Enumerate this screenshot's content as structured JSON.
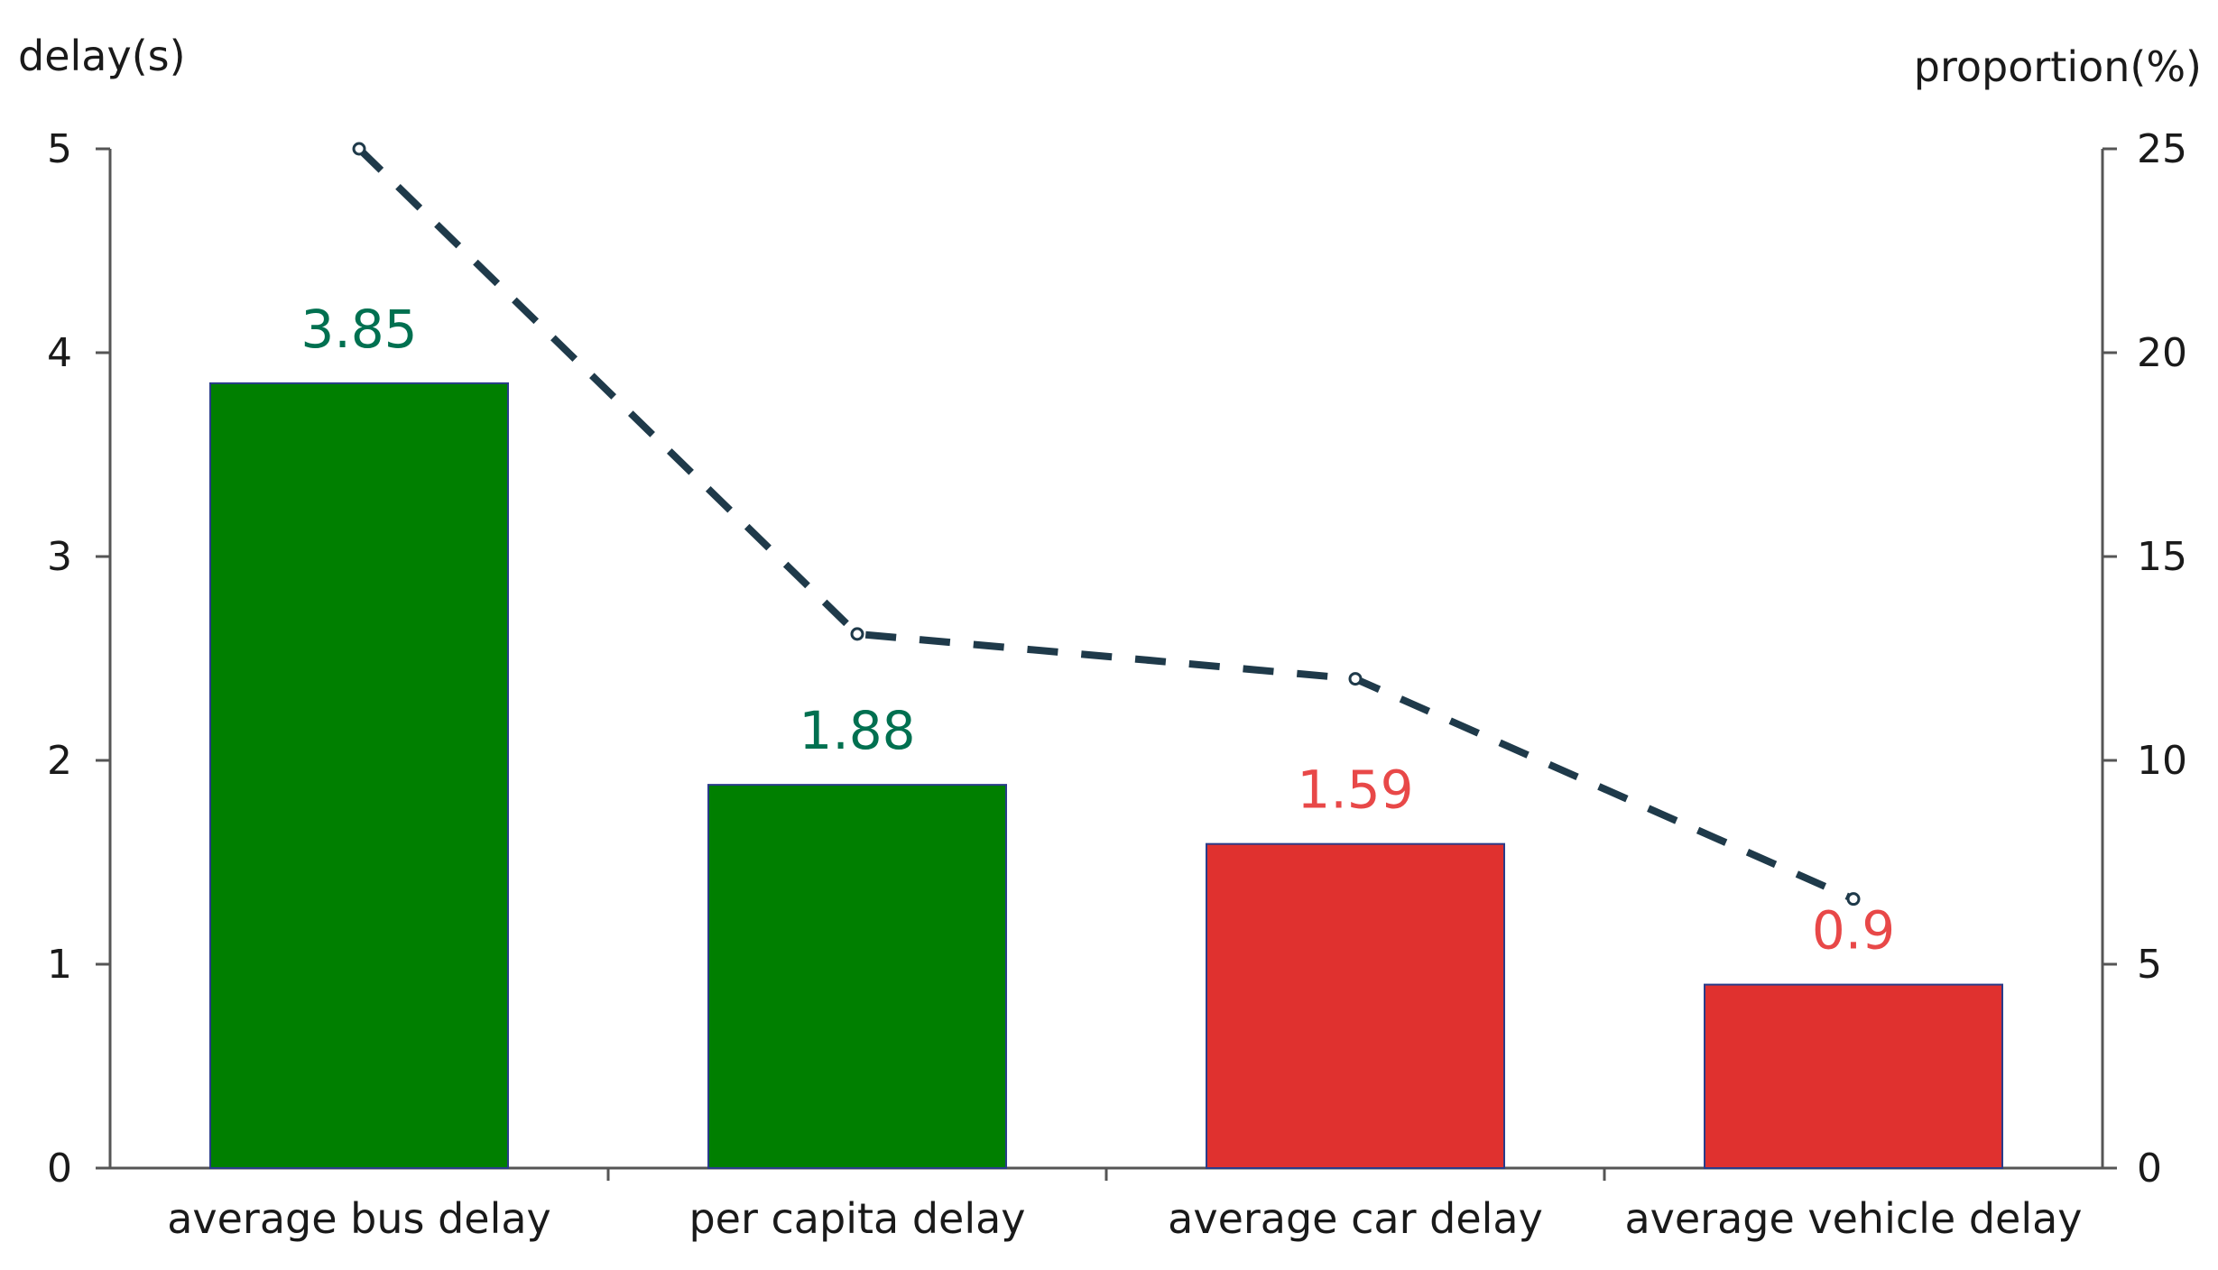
{
  "chart_data": {
    "type": "bar",
    "categories": [
      "average bus delay",
      "per capita delay",
      "average car delay",
      "average vehicle delay"
    ],
    "series": [
      {
        "type": "bar",
        "axis": "left",
        "values": [
          3.85,
          1.88,
          1.59,
          0.9
        ],
        "data_labels": [
          "3.85",
          "1.88",
          "1.59",
          "0.9"
        ],
        "colors": [
          "#007f00",
          "#007f00",
          "#e0312f",
          "#e0312f"
        ]
      },
      {
        "type": "line",
        "axis": "right",
        "style": "dashed",
        "color": "#1f3a4a",
        "values": [
          25,
          13.1,
          12,
          6.6
        ]
      }
    ],
    "y_left": {
      "label": "delay(s)",
      "range": [
        0,
        5
      ],
      "ticks": [
        "0",
        "1",
        "2",
        "3",
        "4",
        "5"
      ]
    },
    "y_right": {
      "label": "proportion(%)",
      "range": [
        0,
        25
      ],
      "ticks": [
        "0",
        "5",
        "10",
        "15",
        "20",
        "25"
      ]
    },
    "label_colors": {
      "green": "#007050",
      "red": "#e84848"
    },
    "grid": false,
    "legend": "none"
  }
}
